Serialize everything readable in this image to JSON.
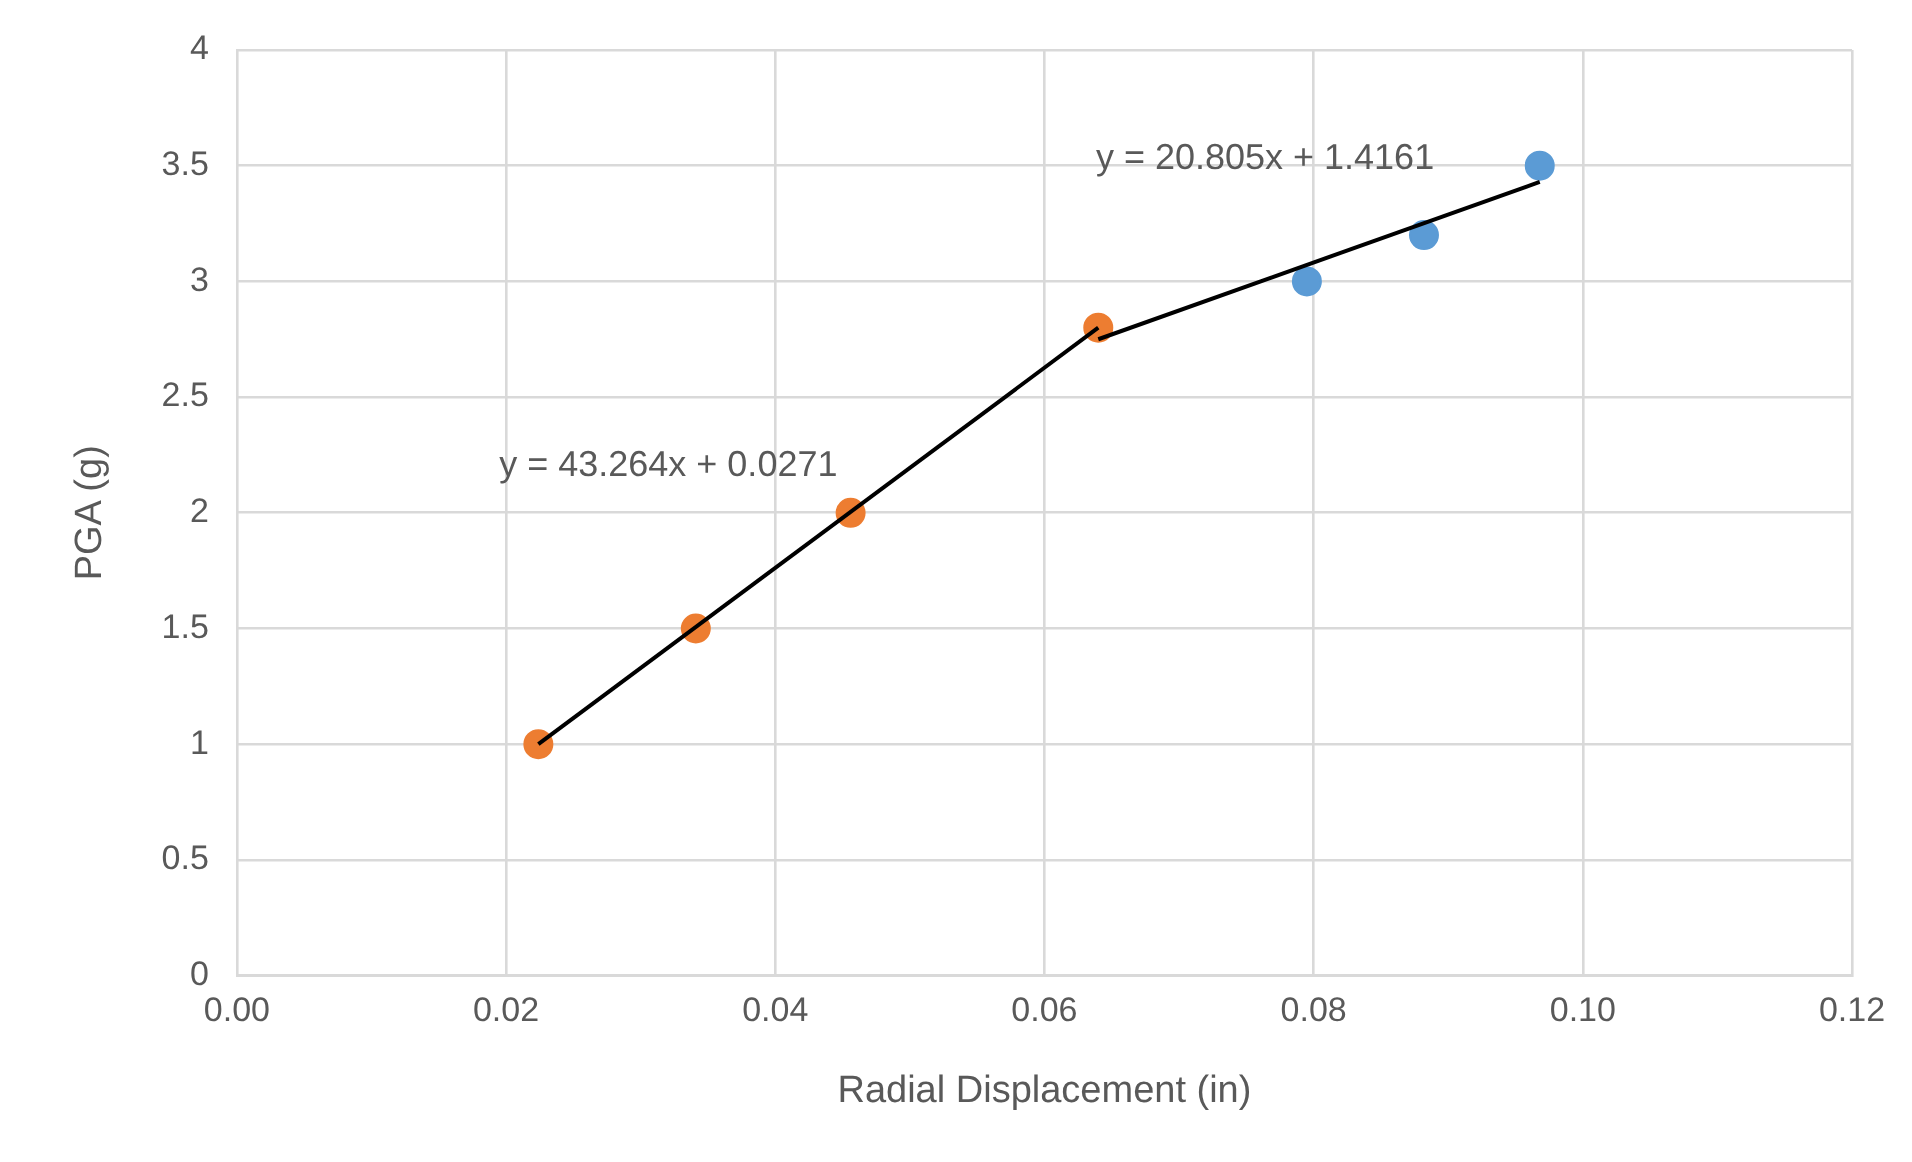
{
  "chart_data": {
    "type": "scatter",
    "xlabel": "Radial Displacement (in)",
    "ylabel": "PGA (g)",
    "series": [
      {
        "color": "#ed7d31",
        "x": [
          0.0224,
          0.0341,
          0.0456,
          0.064
        ],
        "values": [
          1,
          1.5,
          2,
          2.8
        ]
      },
      {
        "color": "#5b9bd5",
        "x": [
          0.0795,
          0.0882,
          0.0968
        ],
        "values": [
          3,
          3.2,
          3.5
        ]
      },
      {
        "type": "line",
        "marker": "none",
        "color": "#000000",
        "x": [
          0.0224,
          0.064
        ],
        "values": [
          1,
          2.8
        ]
      },
      {
        "type": "line",
        "marker": "none",
        "color": "#000000",
        "x": [
          0.064,
          0.0968
        ],
        "values": [
          2.75,
          3.43
        ]
      }
    ],
    "xlim": [
      0,
      0.12
    ],
    "xticks": [
      {
        "value": 0,
        "label": "0.00"
      },
      {
        "value": 0.02,
        "label": "0.02"
      },
      {
        "value": 0.04,
        "label": "0.04"
      },
      {
        "value": 0.06,
        "label": "0.06"
      },
      {
        "value": 0.08,
        "label": "0.08"
      },
      {
        "value": 0.1,
        "label": "0.10"
      },
      {
        "value": 0.12,
        "label": "0.12"
      }
    ],
    "ylim": [
      0,
      4
    ],
    "yticks": [
      0,
      0.5,
      1,
      1.5,
      2,
      2.5,
      3,
      3.5,
      4
    ],
    "grid": true,
    "legend": false,
    "marker": "circle",
    "annotations": [
      "y = 43.264x + 0.0271",
      "y = 20.805x + 1.4161"
    ]
  }
}
